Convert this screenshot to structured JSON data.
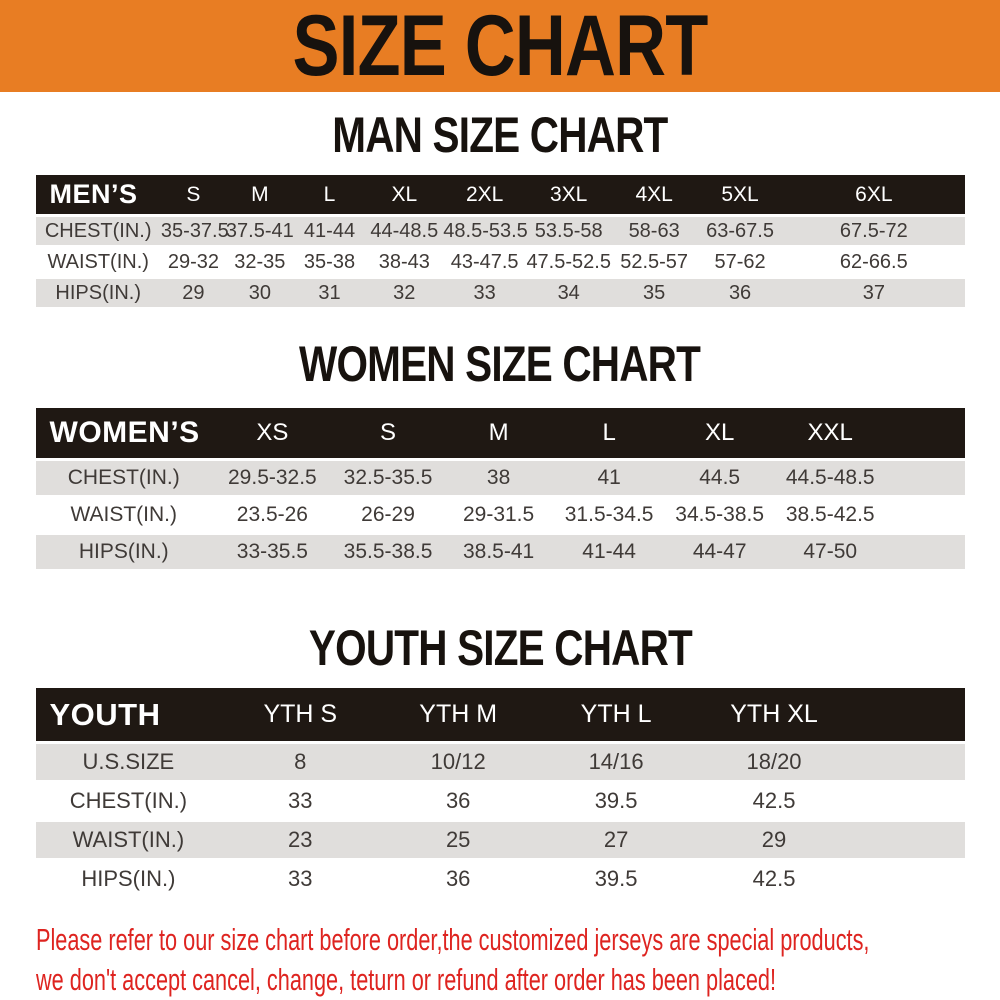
{
  "banner": {
    "title": "SIZE CHART"
  },
  "colors": {
    "banner_orange": "#E87D23",
    "table_header_black": "#1F1813",
    "row_gray": "#E0DEDC",
    "footer_red": "#DE2420",
    "data_text": "#3F3A37"
  },
  "sections": [
    {
      "id": "men",
      "heading": "MAN SIZE CHART",
      "header_label": "MEN’S",
      "columns": [
        "S",
        "M",
        "L",
        "XL",
        "2XL",
        "3XL",
        "4XL",
        "5XL",
        "6XL"
      ],
      "rows": [
        {
          "label": "CHEST(IN.)",
          "values": [
            "35-37.5",
            "37.5-41",
            "41-44",
            "44-48.5",
            "48.5-53.5",
            "53.5-58",
            "58-63",
            "63-67.5",
            "67.5-72"
          ]
        },
        {
          "label": "WAIST(IN.)",
          "values": [
            "29-32",
            "32-35",
            "35-38",
            "38-43",
            "43-47.5",
            "47.5-52.5",
            "52.5-57",
            "57-62",
            "62-66.5"
          ]
        },
        {
          "label": "HIPS(IN.)",
          "values": [
            "29",
            "30",
            "31",
            "32",
            "33",
            "34",
            "35",
            "36",
            "37"
          ]
        }
      ]
    },
    {
      "id": "women",
      "heading": "WOMEN SIZE CHART",
      "header_label": "WOMEN’S",
      "columns": [
        "XS",
        "S",
        "M",
        "L",
        "XL",
        "XXL"
      ],
      "rows": [
        {
          "label": "CHEST(IN.)",
          "values": [
            "29.5-32.5",
            "32.5-35.5",
            "38",
            "41",
            "44.5",
            "44.5-48.5"
          ]
        },
        {
          "label": "WAIST(IN.)",
          "values": [
            "23.5-26",
            "26-29",
            "29-31.5",
            "31.5-34.5",
            "34.5-38.5",
            "38.5-42.5"
          ]
        },
        {
          "label": "HIPS(IN.)",
          "values": [
            "33-35.5",
            "35.5-38.5",
            "38.5-41",
            "41-44",
            "44-47",
            "47-50"
          ]
        }
      ]
    },
    {
      "id": "youth",
      "heading": "YOUTH SIZE CHART",
      "header_label": "YOUTH",
      "columns": [
        "YTH S",
        "YTH M",
        "YTH L",
        "YTH XL"
      ],
      "rows": [
        {
          "label": "U.S.SIZE",
          "values": [
            "8",
            "10/12",
            "14/16",
            "18/20"
          ]
        },
        {
          "label": "CHEST(IN.)",
          "values": [
            "33",
            "36",
            "39.5",
            "42.5"
          ]
        },
        {
          "label": "WAIST(IN.)",
          "values": [
            "23",
            "25",
            "27",
            "29"
          ]
        },
        {
          "label": "HIPS(IN.)",
          "values": [
            "33",
            "36",
            "39.5",
            "42.5"
          ]
        }
      ]
    }
  ],
  "footer": {
    "lines": [
      "Please refer to our size chart before order,the customized jerseys are special products,",
      "we don't accept cancel, change, teturn or refund after order has been placed!"
    ]
  }
}
